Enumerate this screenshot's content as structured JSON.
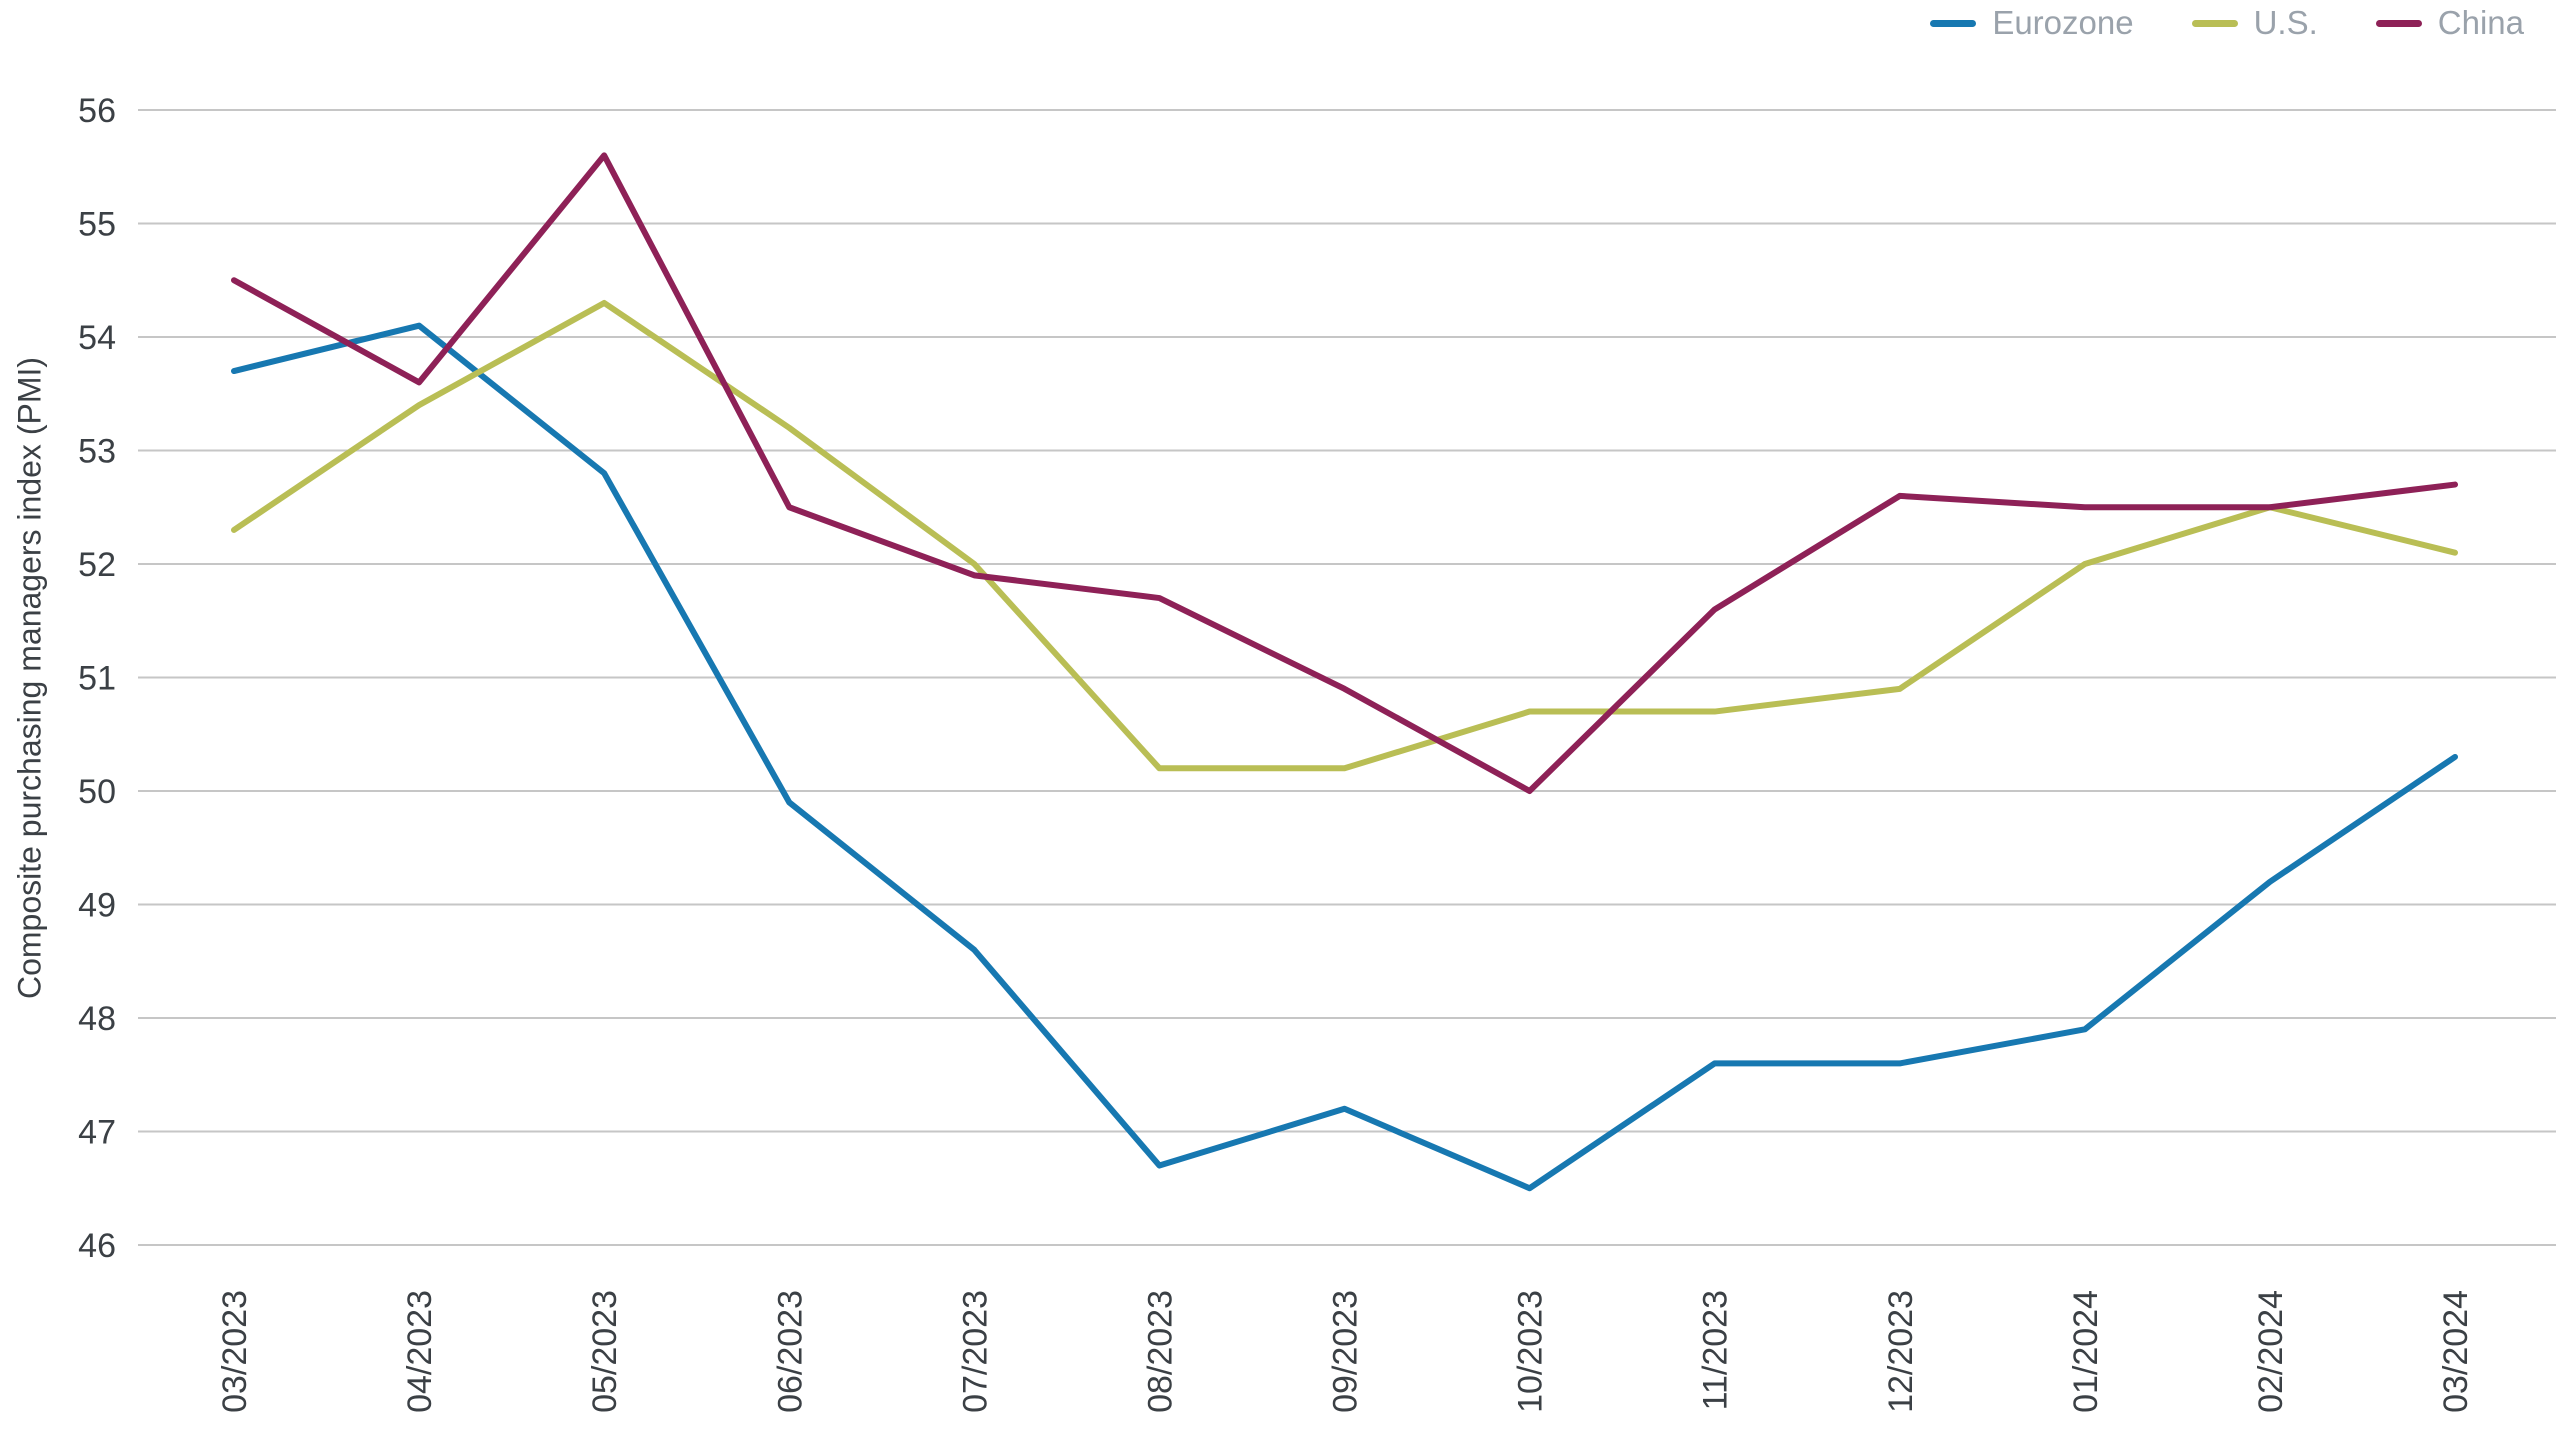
{
  "chart_data": {
    "type": "line",
    "title": "",
    "xlabel": "",
    "ylabel": "Composite purchasing managers index (PMI)",
    "ylim": [
      46,
      56
    ],
    "ytick_step": 1,
    "grid": true,
    "grid_color": "#c6c6c6",
    "tick_text_color": "#3b4045",
    "legend_position": "top-right",
    "legend_text_color": "#9aa2ab",
    "y_ticks": [
      46,
      47,
      48,
      49,
      50,
      51,
      52,
      53,
      54,
      55,
      56
    ],
    "categories": [
      "03/2023",
      "04/2023",
      "05/2023",
      "06/2023",
      "07/2023",
      "08/2023",
      "09/2023",
      "10/2023",
      "11/2023",
      "12/2023",
      "01/2024",
      "02/2024",
      "03/2024"
    ],
    "series": [
      {
        "name": "Eurozone",
        "color": "#1778b1",
        "values": [
          53.7,
          54.1,
          52.8,
          49.9,
          48.6,
          46.7,
          47.2,
          46.5,
          47.6,
          47.6,
          47.9,
          49.2,
          50.3
        ]
      },
      {
        "name": "U.S.",
        "color": "#b9be55",
        "values": [
          52.3,
          53.4,
          54.3,
          53.2,
          52.0,
          50.2,
          50.2,
          50.7,
          50.7,
          50.9,
          52.0,
          52.5,
          52.1
        ]
      },
      {
        "name": "China",
        "color": "#8e2157",
        "values": [
          54.5,
          53.6,
          55.6,
          52.5,
          51.9,
          51.7,
          50.9,
          50.0,
          51.6,
          52.6,
          52.5,
          52.5,
          52.7
        ]
      }
    ]
  }
}
